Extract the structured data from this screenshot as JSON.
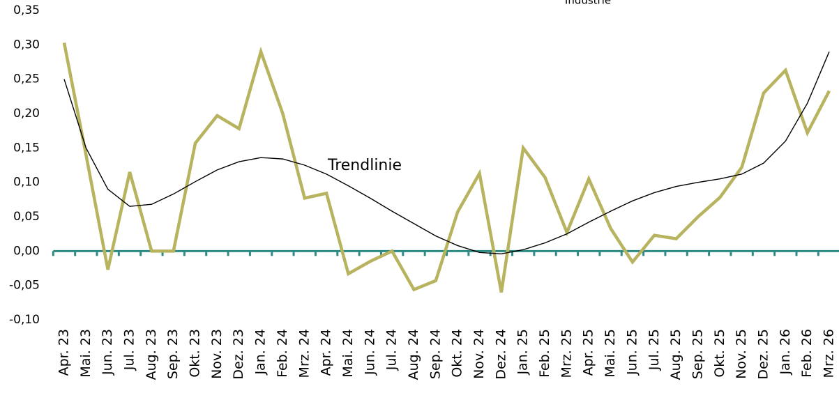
{
  "chart_data": {
    "type": "line",
    "subtitle": "Industrie",
    "annotation": "Trendlinie",
    "categories": [
      "Apr. 23",
      "Mai. 23",
      "Jun. 23",
      "Jul. 23",
      "Aug. 23",
      "Sep. 23",
      "Okt. 23",
      "Nov. 23",
      "Dez. 23",
      "Jan. 24",
      "Feb. 24",
      "Mrz. 24",
      "Apr. 24",
      "Mai. 24",
      "Jun. 24",
      "Jul. 24",
      "Aug. 24",
      "Sep. 24",
      "Okt. 24",
      "Nov. 24",
      "Dez. 24",
      "Jan. 25",
      "Feb. 25",
      "Mrz. 25",
      "Apr. 25",
      "Mai. 25",
      "Jun. 25",
      "Jul. 25",
      "Aug. 25",
      "Sep. 25",
      "Okt. 25",
      "Nov. 25",
      "Dez. 25",
      "Jan. 26",
      "Feb. 26",
      "Mrz. 26"
    ],
    "series": [
      {
        "color": "#b8b35f",
        "values": [
          0.303,
          0.14,
          -0.027,
          0.115,
          0.0,
          0.0,
          0.157,
          0.197,
          0.178,
          0.29,
          0.2,
          0.077,
          0.084,
          -0.033,
          -0.015,
          0.0,
          -0.056,
          -0.043,
          0.057,
          0.113,
          -0.06,
          0.15,
          0.107,
          0.027,
          0.105,
          0.033,
          -0.016,
          0.023,
          0.018,
          0.05,
          0.078,
          0.122,
          0.23,
          0.263,
          0.172,
          0.233
        ]
      },
      {
        "color": "#000000",
        "values": [
          0.25,
          0.15,
          0.09,
          0.065,
          0.068,
          0.083,
          0.101,
          0.118,
          0.13,
          0.136,
          0.134,
          0.125,
          0.112,
          0.095,
          0.077,
          0.058,
          0.04,
          0.022,
          0.008,
          -0.002,
          -0.004,
          0.002,
          0.012,
          0.025,
          0.042,
          0.058,
          0.073,
          0.085,
          0.094,
          0.1,
          0.105,
          0.112,
          0.128,
          0.16,
          0.215,
          0.29
        ]
      }
    ],
    "axis_color": "#2e8b84",
    "ylim": [
      -0.1,
      0.35
    ],
    "yticks": [
      {
        "value": -0.1,
        "label": "-0,10"
      },
      {
        "value": -0.05,
        "label": "-0,05"
      },
      {
        "value": 0.0,
        "label": "0,00"
      },
      {
        "value": 0.05,
        "label": "0,05"
      },
      {
        "value": 0.1,
        "label": "0,10"
      },
      {
        "value": 0.15,
        "label": "0,15"
      },
      {
        "value": 0.2,
        "label": "0,20"
      },
      {
        "value": 0.25,
        "label": "0,25"
      },
      {
        "value": 0.3,
        "label": "0,30"
      },
      {
        "value": 0.35,
        "label": "0,35"
      }
    ],
    "grid": false
  }
}
